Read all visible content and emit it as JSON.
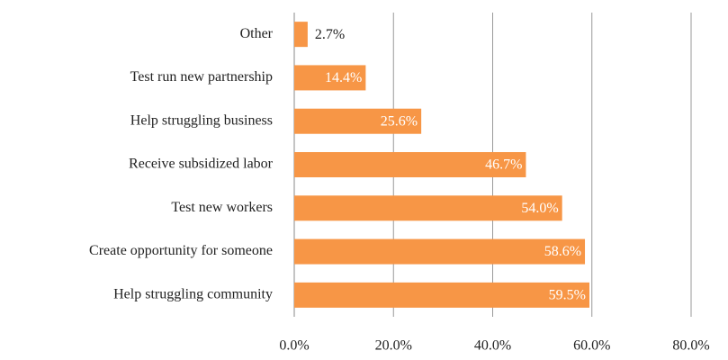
{
  "chart_data": {
    "type": "bar",
    "orientation": "horizontal",
    "categories": [
      "Other",
      "Test run new partnership",
      "Help struggling business",
      "Receive subsidized labor",
      "Test new workers",
      "Create opportunity for someone",
      "Help struggling community"
    ],
    "values": [
      2.7,
      14.4,
      25.6,
      46.7,
      54.0,
      58.6,
      59.5
    ],
    "value_labels": [
      "2.7%",
      "14.4%",
      "25.6%",
      "46.7%",
      "54.0%",
      "58.6%",
      "59.5%"
    ],
    "color": "#f79646",
    "xlim": [
      0,
      80
    ],
    "xticks": [
      {
        "value": 0,
        "label": "0.0%"
      },
      {
        "value": 20,
        "label": "20.0%"
      },
      {
        "value": 40,
        "label": "40.0%"
      },
      {
        "value": 60,
        "label": "60.0%"
      },
      {
        "value": 80,
        "label": "80.0%"
      }
    ],
    "grid": true
  }
}
